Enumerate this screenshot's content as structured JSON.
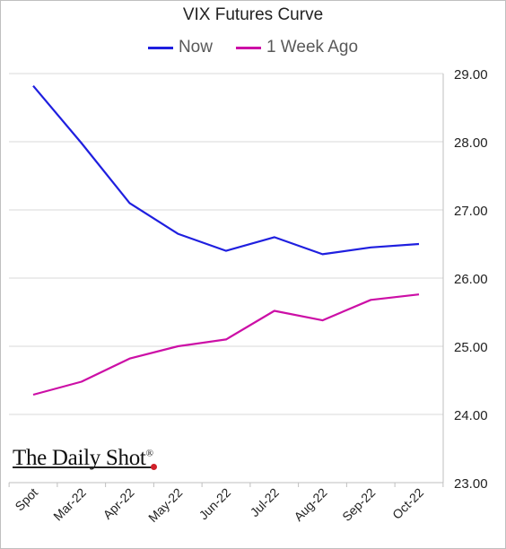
{
  "chart_data": {
    "type": "line",
    "title": "VIX Futures Curve",
    "categories": [
      "Spot",
      "Mar-22",
      "Apr-22",
      "May-22",
      "Jun-22",
      "Jul-22",
      "Aug-22",
      "Sep-22",
      "Oct-22"
    ],
    "series": [
      {
        "name": "Now",
        "color": "#1f1fdf",
        "values": [
          28.82,
          27.98,
          27.1,
          26.65,
          26.4,
          26.6,
          26.35,
          26.45,
          26.5
        ]
      },
      {
        "name": "1 Week Ago",
        "color": "#cc0fa6",
        "values": [
          24.29,
          24.48,
          24.82,
          25.0,
          25.1,
          25.52,
          25.38,
          25.68,
          25.76
        ]
      }
    ],
    "ylim": [
      23.0,
      29.0
    ],
    "yticks": [
      "29.00",
      "28.00",
      "27.00",
      "26.00",
      "25.00",
      "24.00",
      "23.00"
    ],
    "y_axis_side": "right",
    "grid": true,
    "legend_position": "top-center",
    "xlabel": "",
    "ylabel": ""
  },
  "legend": {
    "now": "Now",
    "week_ago": "1 Week Ago"
  },
  "brand": {
    "name": "The Daily Shot",
    "mark": "®"
  }
}
